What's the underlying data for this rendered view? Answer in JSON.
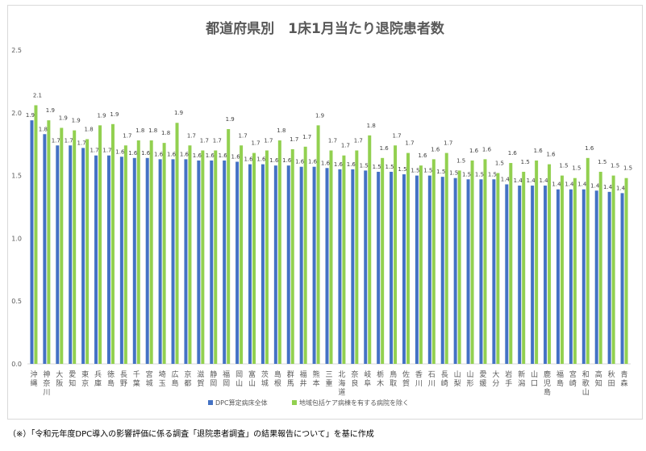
{
  "chart_data": {
    "type": "bar",
    "title": "都道府県別　1床1月当たり退院患者数",
    "xlabel": "",
    "ylabel": "",
    "ylim": [
      0,
      2.5
    ],
    "yticks": [
      "0.0",
      "0.5",
      "1.0",
      "1.5",
      "2.0",
      "2.5"
    ],
    "grid": false,
    "legend_position": "bottom",
    "categories": [
      "沖縄",
      "神奈川",
      "大阪",
      "愛知",
      "東京",
      "兵庫",
      "徳島",
      "長野",
      "千葉",
      "宮城",
      "埼玉",
      "広島",
      "京都",
      "滋賀",
      "静岡",
      "福岡",
      "岡山",
      "富山",
      "茨城",
      "島根",
      "群馬",
      "福井",
      "熊本",
      "三重",
      "北海道",
      "奈良",
      "岐阜",
      "栃木",
      "鳥取",
      "佐賀",
      "香川",
      "石川",
      "長崎",
      "山梨",
      "山形",
      "愛媛",
      "大分",
      "岩手",
      "新潟",
      "山口",
      "鹿児島",
      "福島",
      "宮崎",
      "和歌山",
      "高知",
      "秋田",
      "青森"
    ],
    "series": [
      {
        "name": "DPC算定病床全体",
        "color": "#4472C4",
        "values": [
          1.94,
          1.83,
          1.74,
          1.74,
          1.72,
          1.66,
          1.66,
          1.65,
          1.64,
          1.64,
          1.63,
          1.63,
          1.63,
          1.62,
          1.62,
          1.62,
          1.61,
          1.59,
          1.59,
          1.58,
          1.58,
          1.57,
          1.57,
          1.56,
          1.55,
          1.55,
          1.54,
          1.53,
          1.53,
          1.51,
          1.5,
          1.5,
          1.49,
          1.48,
          1.47,
          1.47,
          1.47,
          1.43,
          1.42,
          1.42,
          1.42,
          1.39,
          1.39,
          1.39,
          1.38,
          1.37,
          1.36
        ]
      },
      {
        "name": "地域包括ケア病棟を有する病院を除く",
        "color": "#92D050",
        "values": [
          2.06,
          1.94,
          1.88,
          1.86,
          1.79,
          1.9,
          1.91,
          1.74,
          1.78,
          1.78,
          1.76,
          1.92,
          1.74,
          1.7,
          1.7,
          1.87,
          1.74,
          1.68,
          1.7,
          1.78,
          1.71,
          1.73,
          1.9,
          1.7,
          1.66,
          1.7,
          1.82,
          1.64,
          1.74,
          1.68,
          1.58,
          1.63,
          1.68,
          1.54,
          1.62,
          1.63,
          1.52,
          1.6,
          1.53,
          1.62,
          1.59,
          1.5,
          1.48,
          1.64,
          1.53,
          1.5,
          1.48
        ]
      }
    ]
  },
  "footnote": "（※）「令和元年度DPC導入の影響評価に係る調査「退院患者調査」の結果報告について」を基に作成"
}
